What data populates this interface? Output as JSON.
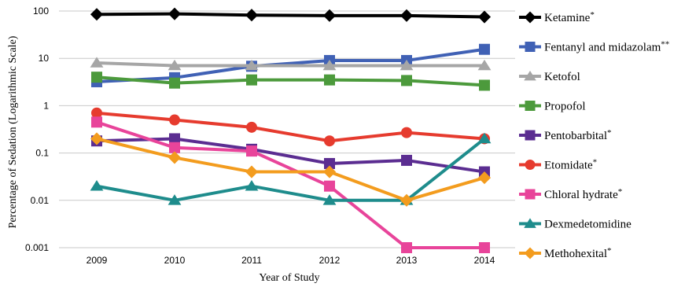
{
  "chart_data": {
    "type": "line",
    "title": "",
    "xlabel": "Year of Study",
    "ylabel": "Percentage of Sedation (Logarithmic Scale)",
    "yscale": "log",
    "ylim": [
      0.001,
      100
    ],
    "grid": "horizontal",
    "legend": "right",
    "categories": [
      "2009",
      "2010",
      "2011",
      "2012",
      "2013",
      "2014"
    ],
    "y_ticks": [
      "0.001",
      "0.01",
      "0.1",
      "1",
      "10",
      "100"
    ],
    "series": [
      {
        "name": "Ketamine",
        "suffix": "*",
        "color": "#000000",
        "marker": "diamond",
        "values": [
          85,
          87,
          82,
          80,
          80,
          75
        ]
      },
      {
        "name": "Fentanyl and midazolam",
        "suffix": "**",
        "color": "#4061b5",
        "marker": "square",
        "values": [
          3.2,
          3.9,
          6.8,
          9.0,
          9.0,
          15.5
        ]
      },
      {
        "name": "Ketofol",
        "suffix": "",
        "color": "#a6a6a6",
        "marker": "triangle",
        "values": [
          8.0,
          7.0,
          7.0,
          7.0,
          7.0,
          7.0
        ]
      },
      {
        "name": "Propofol",
        "suffix": "",
        "color": "#4c9a3c",
        "marker": "square",
        "values": [
          4.0,
          3.0,
          3.5,
          3.5,
          3.4,
          2.7
        ]
      },
      {
        "name": "Pentobarbital",
        "suffix": "*",
        "color": "#5b2d91",
        "marker": "square",
        "values": [
          0.18,
          0.2,
          0.12,
          0.06,
          0.07,
          0.04
        ]
      },
      {
        "name": "Etomidate",
        "suffix": "*",
        "color": "#e63b2e",
        "marker": "circle",
        "values": [
          0.7,
          0.5,
          0.35,
          0.18,
          0.27,
          0.2
        ]
      },
      {
        "name": "Chloral hydrate",
        "suffix": "*",
        "color": "#e8449a",
        "marker": "square",
        "values": [
          0.45,
          0.13,
          0.11,
          0.02,
          0.001,
          0.001
        ]
      },
      {
        "name": "Dexmedetomidine",
        "suffix": "",
        "color": "#1e8c8c",
        "marker": "triangle",
        "values": [
          0.02,
          0.01,
          0.02,
          0.01,
          0.01,
          0.2
        ]
      },
      {
        "name": "Methohexital",
        "suffix": "*",
        "color": "#f39c1e",
        "marker": "diamond",
        "values": [
          0.2,
          0.08,
          0.04,
          0.04,
          0.01,
          0.03
        ]
      }
    ]
  }
}
